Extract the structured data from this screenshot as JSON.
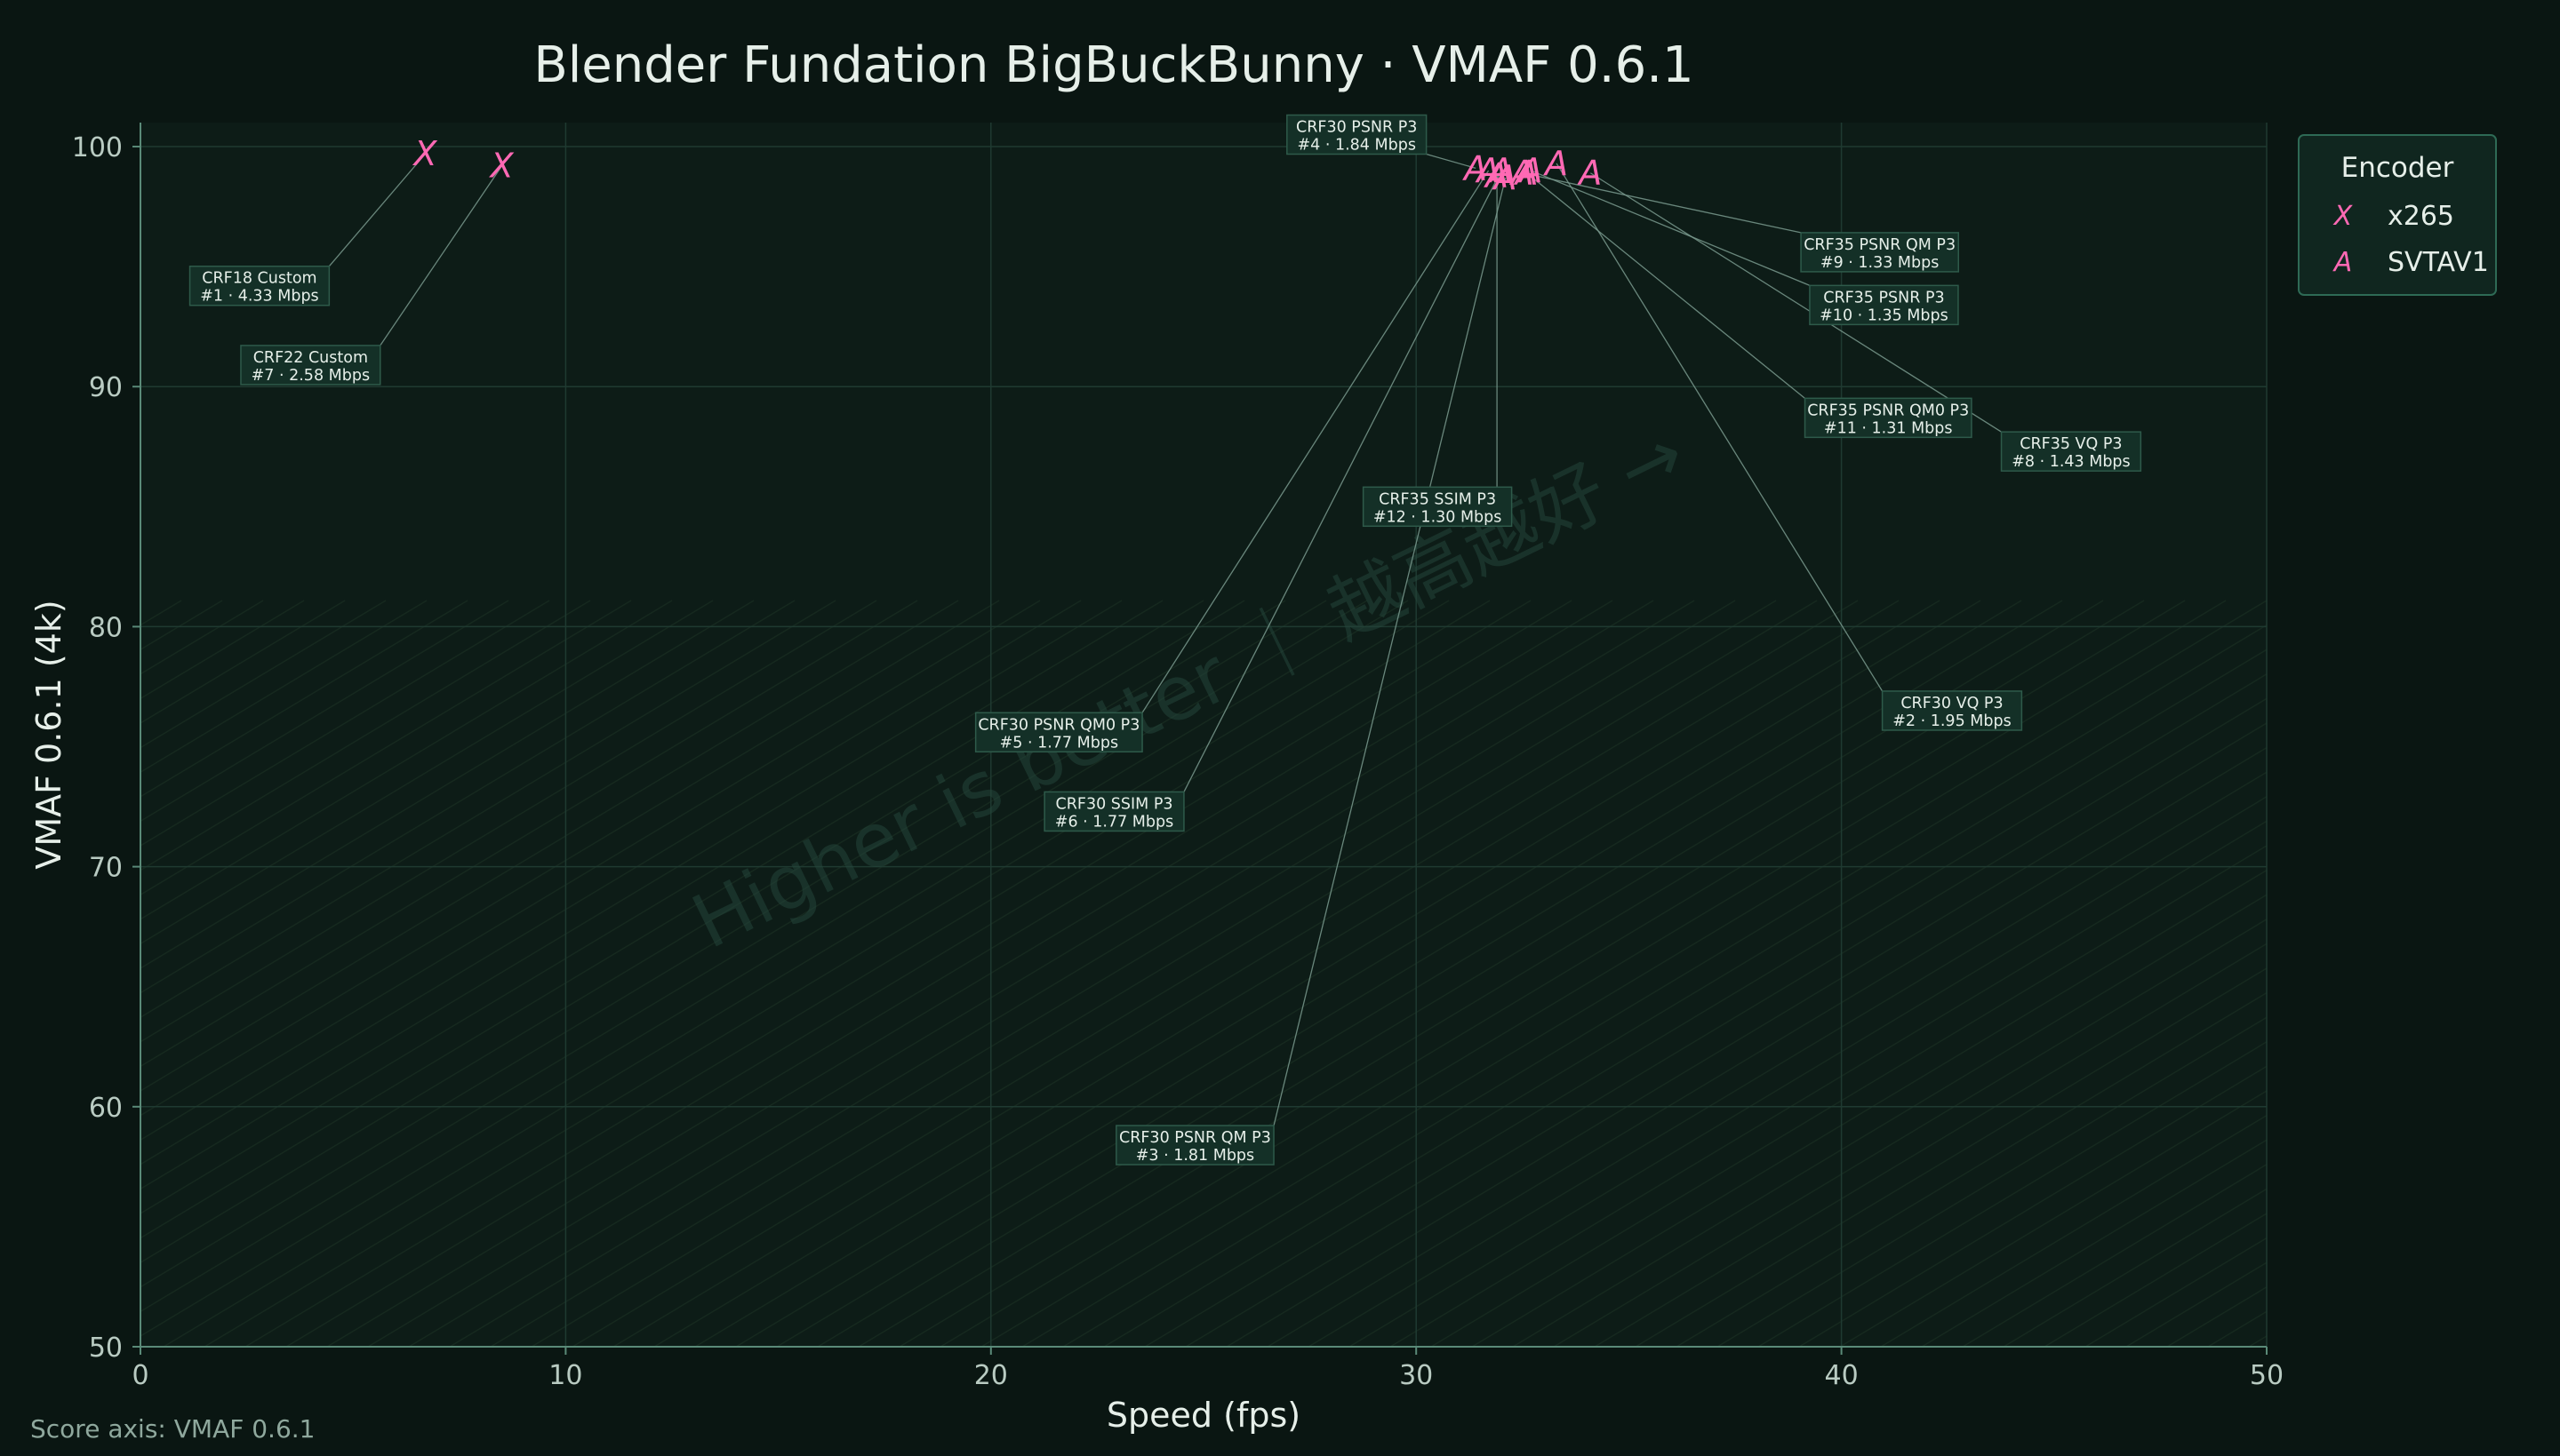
{
  "footnote": "Score axis: VMAF 0.6.1",
  "watermark": "Higher is better ｜ 越高越好 →",
  "colors": {
    "background": "#0a1612",
    "plot_background": "#0d1c17",
    "grid": "#1f3a31",
    "axis": "#5a8a78",
    "text": "#e6efe9",
    "tick_text": "#b9cbc2",
    "marker": "#ff69b4",
    "label_box": "#143027",
    "label_border": "#2e5a4a",
    "leader_line": "#7a9a8e",
    "legend_bg": "#10261f",
    "legend_border": "#2e6a55"
  },
  "chart_data": {
    "type": "scatter",
    "title": "Blender Fundation BigBuckBunny · VMAF 0.6.1",
    "xlabel": "Speed (fps)",
    "ylabel": "VMAF 0.6.1 (4k)",
    "xlim": [
      0,
      50
    ],
    "ylim": [
      50,
      101
    ],
    "xticks": [
      0,
      10,
      20,
      30,
      40,
      50
    ],
    "yticks": [
      50,
      60,
      70,
      80,
      90,
      100
    ],
    "grid": true,
    "legend_title": "Encoder",
    "legend_position": "top-right",
    "series": [
      {
        "name": "x265",
        "marker": "X",
        "points": [
          {
            "x": 6.7,
            "y": 99.7,
            "label1": "CRF18 Custom",
            "label2": "#1 · 4.33 Mbps",
            "lx": 2.8,
            "ly": 94.2
          },
          {
            "x": 8.5,
            "y": 99.2,
            "label1": "CRF22 Custom",
            "label2": "#7 · 2.58 Mbps",
            "lx": 4.0,
            "ly": 90.9
          }
        ]
      },
      {
        "name": "SVTAV1",
        "marker": "A",
        "points": [
          {
            "x": 31.4,
            "y": 99.1,
            "label1": "CRF30 PSNR P3",
            "label2": "#4 · 1.84 Mbps",
            "lx": 28.6,
            "ly": 100.5
          },
          {
            "x": 31.7,
            "y": 99.0,
            "label1": "CRF30 PSNR QM0 P3",
            "label2": "#5 · 1.77 Mbps",
            "lx": 21.6,
            "ly": 75.6
          },
          {
            "x": 32.0,
            "y": 99.0,
            "label1": "CRF30 SSIM P3",
            "label2": "#6 · 1.77 Mbps",
            "lx": 22.9,
            "ly": 72.3
          },
          {
            "x": 32.1,
            "y": 98.7,
            "label1": "CRF30 PSNR QM P3",
            "label2": "#3 · 1.81 Mbps",
            "lx": 24.8,
            "ly": 58.4
          },
          {
            "x": 31.9,
            "y": 98.8,
            "label1": "CRF35 SSIM P3",
            "label2": "#12 · 1.30 Mbps",
            "lx": 30.5,
            "ly": 85.0
          },
          {
            "x": 32.5,
            "y": 98.9,
            "label1": "CRF35 PSNR QM P3",
            "label2": "#9 · 1.33 Mbps",
            "lx": 40.9,
            "ly": 95.6
          },
          {
            "x": 32.7,
            "y": 99.0,
            "label1": "CRF35 PSNR P3",
            "label2": "#10 · 1.35 Mbps",
            "lx": 41.0,
            "ly": 93.4
          },
          {
            "x": 33.3,
            "y": 99.3,
            "label1": "CRF30 VQ P3",
            "label2": "#2 · 1.95 Mbps",
            "lx": 42.6,
            "ly": 76.5
          },
          {
            "x": 32.6,
            "y": 98.9,
            "label1": "CRF35 PSNR QM0 P3",
            "label2": "#11 · 1.31 Mbps",
            "lx": 41.1,
            "ly": 88.7
          },
          {
            "x": 34.1,
            "y": 98.9,
            "label1": "CRF35 VQ P3",
            "label2": "#8 · 1.43 Mbps",
            "lx": 45.4,
            "ly": 87.3
          }
        ]
      }
    ]
  }
}
